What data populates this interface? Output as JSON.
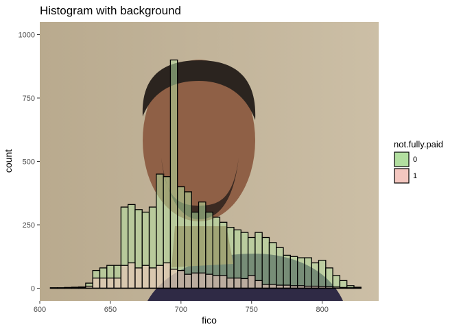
{
  "chart_data": {
    "type": "bar",
    "title": "Histogram with background",
    "xlabel": "fico",
    "ylabel": "count",
    "xlim": [
      600,
      840
    ],
    "ylim": [
      -50,
      1050
    ],
    "xticks": [
      600,
      650,
      700,
      750,
      800
    ],
    "yticks": [
      0,
      250,
      500,
      750,
      1000
    ],
    "bin_width": 5,
    "bins_start": [
      607.5,
      612.5,
      617.5,
      622.5,
      627.5,
      632.5,
      637.5,
      642.5,
      647.5,
      652.5,
      657.5,
      662.5,
      667.5,
      672.5,
      677.5,
      682.5,
      687.5,
      692.5,
      697.5,
      702.5,
      707.5,
      712.5,
      717.5,
      722.5,
      727.5,
      732.5,
      737.5,
      742.5,
      747.5,
      752.5,
      757.5,
      762.5,
      767.5,
      772.5,
      777.5,
      782.5,
      787.5,
      792.5,
      797.5,
      802.5,
      807.5,
      812.5,
      817.5,
      822.5
    ],
    "series": [
      {
        "name": "0",
        "color": "#b2dfa0",
        "values": [
          2,
          2,
          3,
          4,
          5,
          20,
          70,
          80,
          90,
          90,
          320,
          330,
          310,
          300,
          320,
          450,
          440,
          900,
          400,
          380,
          300,
          340,
          300,
          280,
          260,
          240,
          230,
          220,
          200,
          220,
          200,
          180,
          160,
          130,
          125,
          120,
          120,
          100,
          110,
          80,
          50,
          30,
          10,
          4
        ]
      },
      {
        "name": "1",
        "color": "#f4c7c0",
        "values": [
          1,
          1,
          1,
          2,
          3,
          8,
          40,
          40,
          40,
          40,
          90,
          100,
          80,
          90,
          80,
          90,
          100,
          75,
          70,
          55,
          60,
          60,
          55,
          50,
          50,
          40,
          40,
          38,
          50,
          30,
          15,
          15,
          12,
          12,
          10,
          10,
          8,
          8,
          7,
          6,
          5,
          3,
          2,
          1
        ]
      }
    ],
    "legend": {
      "title": "not.fully.paid",
      "placement": "right"
    },
    "grid": false,
    "background": "photograph of a man (face, shoulders)"
  },
  "colors": {
    "series0": "#b2dfa0",
    "series1": "#f4c7c0",
    "outline": "#000000"
  }
}
